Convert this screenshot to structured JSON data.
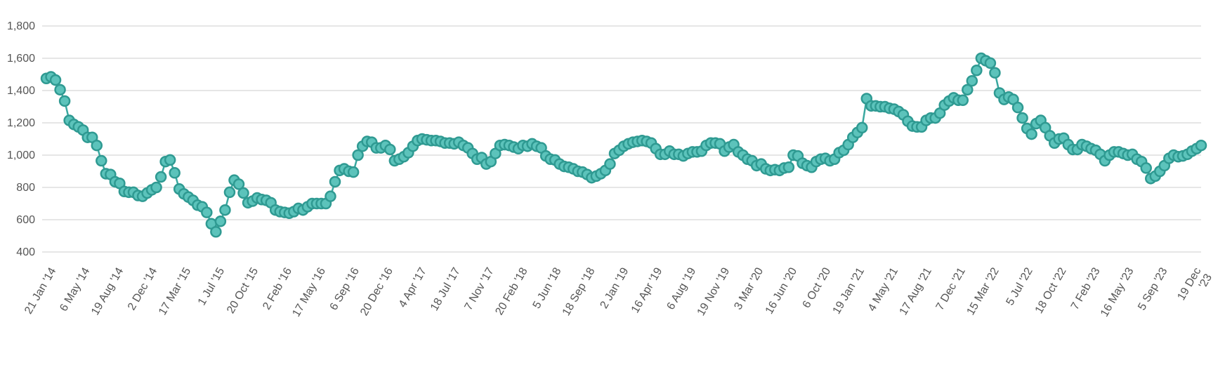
{
  "chart_data": {
    "type": "line",
    "title": "",
    "xlabel": "",
    "ylabel": "",
    "ylim": [
      400,
      1800
    ],
    "yticks": [
      "400",
      "600",
      "800",
      "1,000",
      "1,200",
      "1,400",
      "1,600",
      "1,800"
    ],
    "ytick_values": [
      400,
      600,
      800,
      1000,
      1200,
      1400,
      1600,
      1800
    ],
    "xtick_labels": [
      "21 Jan '14",
      "6 May '14",
      "19 Aug '14",
      "2 Dec '14",
      "17 Mar '15",
      "1 Jul '15",
      "20 Oct '15",
      "2 Feb '16",
      "17 May '16",
      "6 Sep '16",
      "20 Dec '16",
      "4 Apr '17",
      "18 Jul '17",
      "7 Nov '17",
      "20 Feb '18",
      "5 Jun '18",
      "18 Sep '18",
      "2 Jan '19",
      "16 Apr '19",
      "6 Aug '19",
      "19 Nov '19",
      "3 Mar '20",
      "16 Jun '20",
      "6 Oct '20",
      "19 Jan '21",
      "4 May '21",
      "17 Aug '21",
      "7 Dec '21",
      "15 Mar '22",
      "5 Jul '22",
      "18 Oct '22",
      "7 Feb '23",
      "16 May '23",
      "5 Sep '23",
      "19 Dec '23"
    ],
    "grid": true,
    "legend": "none",
    "colors": {
      "line": "#3aa8a0",
      "marker_fill": "#5cc3bb",
      "marker_stroke": "#2f9a92",
      "grid": "#e6e6e6",
      "tick_text": "#555555"
    },
    "series": [
      {
        "values": [
          1475,
          1485,
          1465,
          1405,
          1335,
          1215,
          1190,
          1175,
          1155,
          1110,
          1110,
          1060,
          965,
          885,
          880,
          835,
          825,
          775,
          770,
          770,
          750,
          745,
          765,
          785,
          800,
          865,
          960,
          970,
          890,
          790,
          760,
          740,
          720,
          690,
          680,
          645,
          575,
          525,
          590,
          660,
          770,
          845,
          820,
          765,
          705,
          715,
          735,
          725,
          720,
          705,
          660,
          650,
          645,
          640,
          650,
          670,
          660,
          680,
          700,
          700,
          700,
          700,
          745,
          835,
          905,
          915,
          900,
          895,
          1000,
          1055,
          1085,
          1080,
          1045,
          1045,
          1060,
          1035,
          965,
          975,
          990,
          1015,
          1055,
          1090,
          1100,
          1095,
          1090,
          1090,
          1085,
          1075,
          1075,
          1070,
          1080,
          1060,
          1045,
          1010,
          975,
          985,
          945,
          960,
          1010,
          1060,
          1065,
          1060,
          1050,
          1040,
          1060,
          1055,
          1070,
          1055,
          1045,
          995,
          975,
          970,
          945,
          930,
          925,
          915,
          900,
          895,
          880,
          860,
          870,
          885,
          905,
          945,
          1010,
          1030,
          1055,
          1070,
          1080,
          1085,
          1090,
          1085,
          1075,
          1040,
          1005,
          1005,
          1025,
          1005,
          1005,
          995,
          1010,
          1020,
          1020,
          1025,
          1060,
          1075,
          1075,
          1070,
          1025,
          1050,
          1065,
          1020,
          1000,
          975,
          965,
          935,
          945,
          915,
          905,
          910,
          905,
          920,
          925,
          1000,
          995,
          950,
          935,
          925,
          960,
          975,
          980,
          965,
          975,
          1015,
          1030,
          1065,
          1110,
          1140,
          1170,
          1350,
          1305,
          1305,
          1300,
          1300,
          1290,
          1285,
          1270,
          1250,
          1210,
          1180,
          1175,
          1175,
          1215,
          1230,
          1230,
          1260,
          1310,
          1335,
          1355,
          1340,
          1340,
          1405,
          1460,
          1525,
          1600,
          1585,
          1570,
          1510,
          1385,
          1345,
          1360,
          1345,
          1295,
          1230,
          1165,
          1130,
          1195,
          1215,
          1170,
          1120,
          1075,
          1100,
          1105,
          1065,
          1035,
          1035,
          1065,
          1055,
          1040,
          1030,
          1005,
          965,
          1000,
          1020,
          1020,
          1010,
          1000,
          1005,
          975,
          960,
          920,
          855,
          870,
          900,
          935,
          980,
          1000,
          990,
          995,
          1005,
          1025,
          1040,
          1060
        ]
      }
    ]
  }
}
